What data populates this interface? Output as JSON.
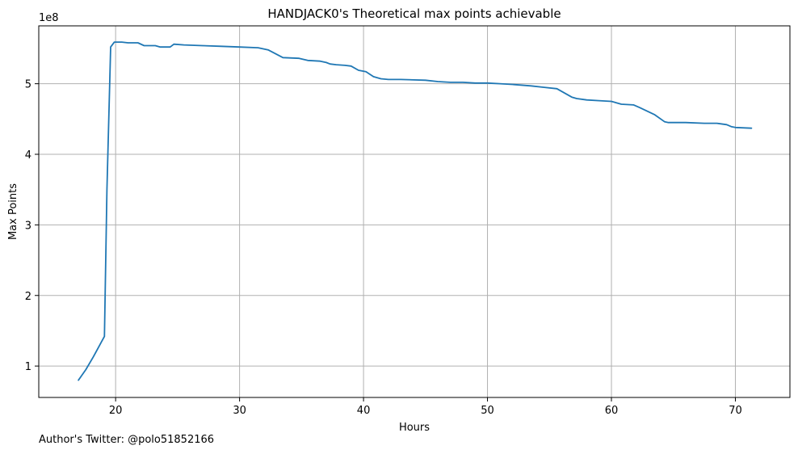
{
  "chart_data": {
    "type": "line",
    "title": "HANDJACK0's Theoretical max points achievable",
    "xlabel": "Hours",
    "ylabel": "Max Points",
    "y_scale_label": "1e8",
    "xlim": [
      13.8,
      74.4
    ],
    "ylim": [
      0.555,
      5.82
    ],
    "x_ticks": [
      20,
      30,
      40,
      50,
      60,
      70
    ],
    "x_tick_labels": [
      "20",
      "30",
      "40",
      "50",
      "60",
      "70"
    ],
    "y_ticks": [
      1,
      2,
      3,
      4,
      5
    ],
    "y_tick_labels": [
      "1",
      "2",
      "3",
      "4",
      "5"
    ],
    "grid": true,
    "series": [
      {
        "color": "#1f77b4",
        "x": [
          17.0,
          17.6,
          18.2,
          18.6,
          19.1,
          19.3,
          19.6,
          19.9,
          20.5,
          21.0,
          21.8,
          22.3,
          22.7,
          23.2,
          23.6,
          24.4,
          24.7,
          25.5,
          27.0,
          28.5,
          30.0,
          31.5,
          32.3,
          33.5,
          34.8,
          35.5,
          36.5,
          37.0,
          37.3,
          37.8,
          38.5,
          39.0,
          39.6,
          40.2,
          40.8,
          41.4,
          42.0,
          42.8,
          43.0,
          45.0,
          46.0,
          47.0,
          48.0,
          49.0,
          50.0,
          51.0,
          52.0,
          53.5,
          54.5,
          55.6,
          56.8,
          57.2,
          58.0,
          59.0,
          60.0,
          60.4,
          60.8,
          61.8,
          62.3,
          63.5,
          64.3,
          64.6,
          65.0,
          66.0,
          67.5,
          68.5,
          69.3,
          69.7,
          70.0,
          71.3
        ],
        "y": [
          0.8,
          0.95,
          1.13,
          1.26,
          1.42,
          3.5,
          5.52,
          5.59,
          5.59,
          5.58,
          5.58,
          5.54,
          5.54,
          5.54,
          5.52,
          5.52,
          5.56,
          5.55,
          5.54,
          5.53,
          5.52,
          5.51,
          5.48,
          5.37,
          5.36,
          5.33,
          5.32,
          5.3,
          5.28,
          5.27,
          5.26,
          5.25,
          5.19,
          5.17,
          5.1,
          5.07,
          5.06,
          5.06,
          5.06,
          5.05,
          5.03,
          5.02,
          5.02,
          5.01,
          5.01,
          5.0,
          4.99,
          4.97,
          4.95,
          4.93,
          4.81,
          4.79,
          4.77,
          4.76,
          4.75,
          4.73,
          4.71,
          4.7,
          4.66,
          4.56,
          4.46,
          4.45,
          4.45,
          4.45,
          4.44,
          4.44,
          4.42,
          4.39,
          4.38,
          4.37
        ]
      }
    ]
  },
  "footer": {
    "text": "Author's Twitter: @polo51852166"
  }
}
